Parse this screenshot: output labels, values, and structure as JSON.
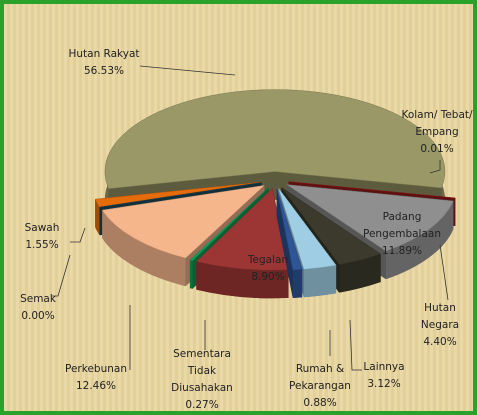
{
  "chart_data": {
    "type": "pie",
    "categories": [
      "Hutan Rakyat",
      "Kolam/ Tebat/ Empang",
      "Padang Pengembalaan",
      "Hutan Negara",
      "Lainnya",
      "Rumah & Pekarangan",
      "Tegalan",
      "Sementara Tidak Diusahakan",
      "Perkebunan",
      "Semak",
      "Sawah"
    ],
    "values": [
      56.53,
      0.01,
      11.89,
      4.4,
      3.12,
      0.88,
      8.9,
      0.27,
      12.46,
      0.0,
      1.55
    ],
    "value_labels": [
      "56.53%",
      "0.01%",
      "11.89%",
      "4.40%",
      "3.12%",
      "0.88%",
      "8.90%",
      "0.27%",
      "12.46%",
      "0.00%",
      "1.55%"
    ],
    "colors": [
      "#9a9866",
      "#9b1c1c",
      "#8f8f8f",
      "#3b3a2c",
      "#9fcde3",
      "#2f5597",
      "#9b3634",
      "#0fa058",
      "#f6b68c",
      "#1f4e60",
      "#e46c0a"
    ]
  }
}
